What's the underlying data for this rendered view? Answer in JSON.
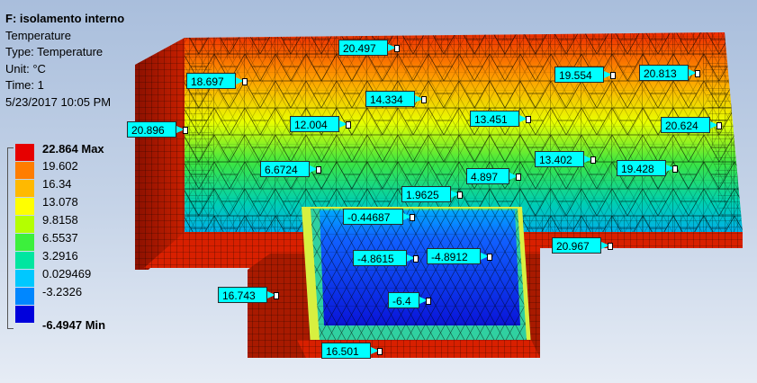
{
  "info": {
    "title": "F: isolamento interno",
    "lines": [
      "Temperature",
      "Type: Temperature",
      "Unit: °C",
      "Time: 1",
      "5/23/2017 10:05 PM"
    ]
  },
  "legend": {
    "labels": [
      "22.864 Max",
      "19.602",
      "16.34",
      "13.078",
      "9.8158",
      "6.5537",
      "3.2916",
      "0.029469",
      "-3.2326",
      "-6.4947 Min"
    ],
    "colors": [
      "#e60000",
      "#ff7d00",
      "#ffb900",
      "#ffff00",
      "#b4ff00",
      "#3cf03c",
      "#00e6a0",
      "#00c8ff",
      "#0087ff",
      "#0000dc"
    ]
  },
  "probes": [
    {
      "value": "20.497"
    },
    {
      "value": "18.697"
    },
    {
      "value": "19.554"
    },
    {
      "value": "20.813"
    },
    {
      "value": "14.334"
    },
    {
      "value": "12.004"
    },
    {
      "value": "13.451"
    },
    {
      "value": "20.896"
    },
    {
      "value": "20.624"
    },
    {
      "value": "13.402"
    },
    {
      "value": "6.6724"
    },
    {
      "value": "4.897"
    },
    {
      "value": "19.428"
    },
    {
      "value": "1.9625"
    },
    {
      "value": "-0.44687"
    },
    {
      "value": "20.967"
    },
    {
      "value": "-4.8615"
    },
    {
      "value": "-4.8912"
    },
    {
      "value": "16.743"
    },
    {
      "value": "-6.4"
    },
    {
      "value": "16.501"
    }
  ]
}
